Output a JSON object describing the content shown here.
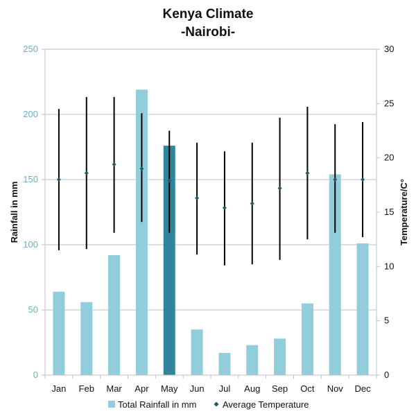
{
  "chart_data": {
    "type": "bar",
    "title": "Kenya Climate",
    "subtitle": "-Nairobi-",
    "categories": [
      "Jan",
      "Feb",
      "Mar",
      "Apr",
      "May",
      "Jun",
      "Jul",
      "Aug",
      "Sep",
      "Oct",
      "Nov",
      "Dec"
    ],
    "series": [
      {
        "name": "Total Rainfall in mm",
        "type": "bar",
        "axis": "left",
        "values": [
          64,
          56,
          92,
          219,
          176,
          35,
          17,
          23,
          28,
          55,
          154,
          101
        ],
        "color": "#92cddc",
        "highlight_index": 4,
        "highlight_color": "#31849b"
      },
      {
        "name": "Average Temperature",
        "type": "scatter",
        "axis": "right",
        "values": [
          18.0,
          18.6,
          19.4,
          19.0,
          17.9,
          16.3,
          15.4,
          15.8,
          17.2,
          18.6,
          18.0,
          18.0
        ],
        "low": [
          11.5,
          11.6,
          13.1,
          14.1,
          13.1,
          11.1,
          10.1,
          10.2,
          10.6,
          12.5,
          13.1,
          12.7
        ],
        "high": [
          24.5,
          25.6,
          25.6,
          24.1,
          22.5,
          21.4,
          20.6,
          21.4,
          23.7,
          24.7,
          23.1,
          23.3
        ],
        "color": "#215967"
      }
    ],
    "ylabel": "Rainfall in mm",
    "ylim": [
      0,
      250
    ],
    "yticks": [
      0,
      50,
      100,
      150,
      200,
      250
    ],
    "y2label": "Temperature/C°",
    "y2lim": [
      0,
      30
    ],
    "y2ticks": [
      0,
      5,
      10,
      15,
      20,
      25,
      30
    ],
    "grid": true,
    "legend": "bottom"
  }
}
